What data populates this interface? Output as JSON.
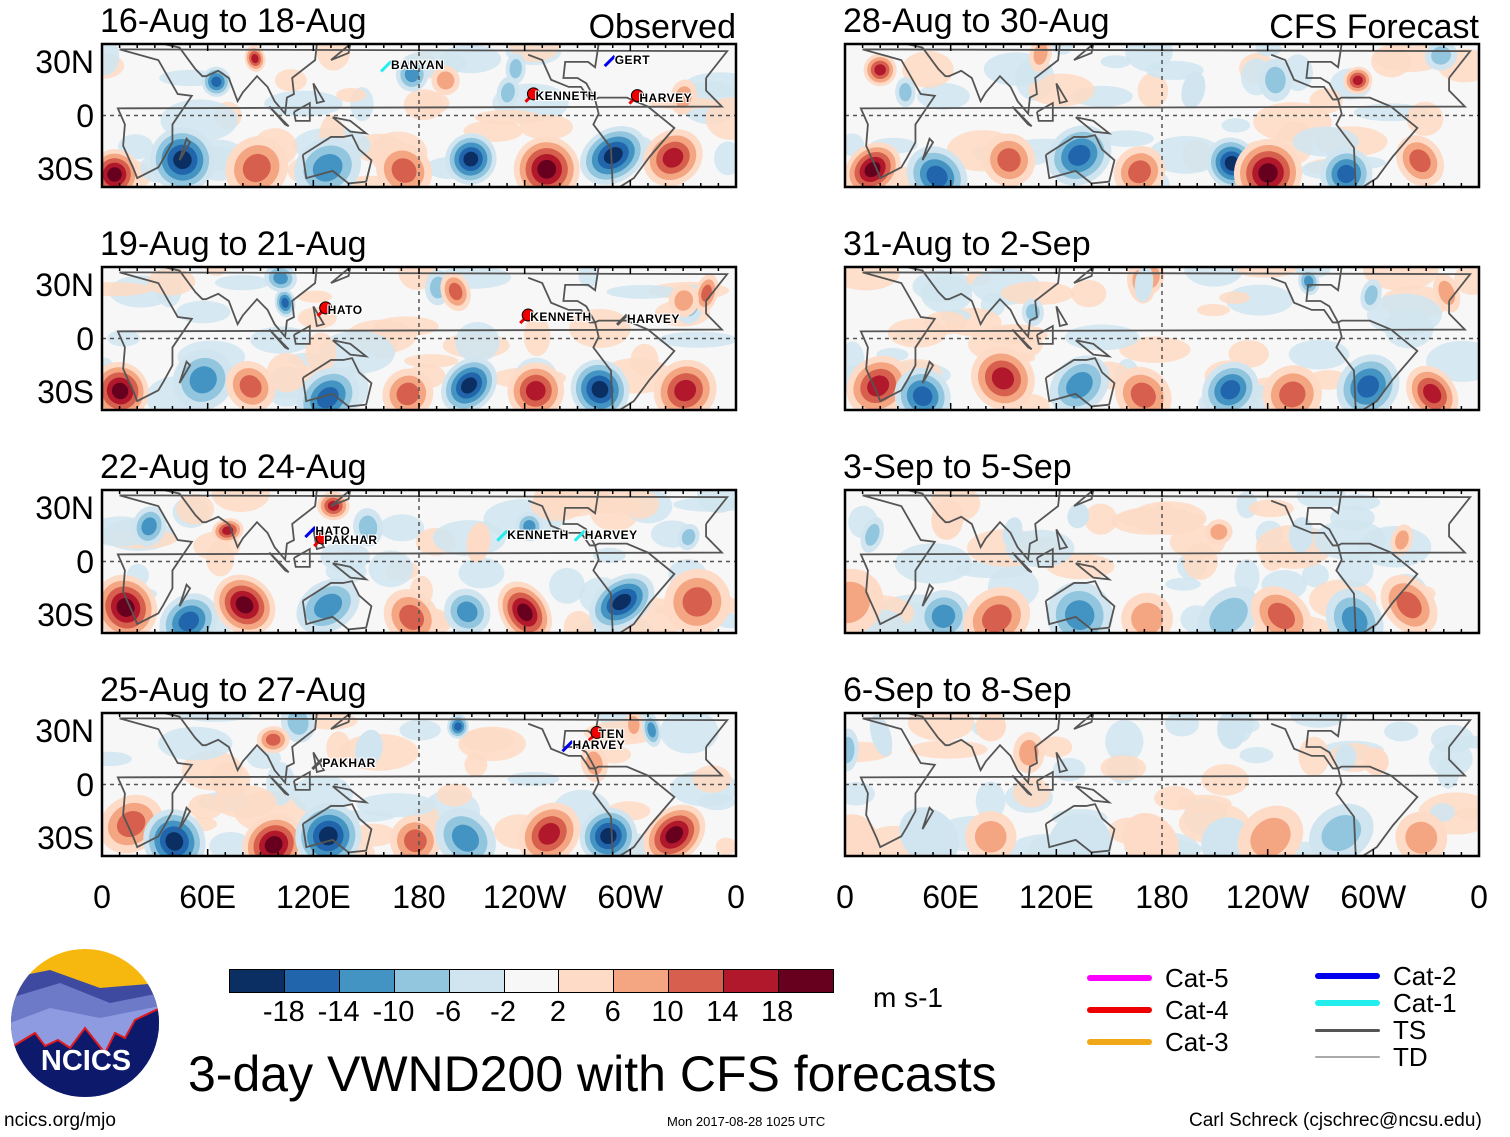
{
  "chart_data": {
    "type": "heatmap",
    "title": "3-day VWND200 with CFS forecasts",
    "units": "m s-1",
    "colorbar": {
      "levels": [
        -18,
        -14,
        -10,
        -6,
        -2,
        2,
        6,
        10,
        14,
        18
      ],
      "level_labels": [
        "-18",
        "-14",
        "-10",
        "-6",
        "-2",
        "2",
        "6",
        "10",
        "14",
        "18"
      ],
      "colors": [
        "#0b2f62",
        "#2166ac",
        "#4393c3",
        "#92c5de",
        "#d1e5f0",
        "#f7f7f7",
        "#fddbc7",
        "#f4a582",
        "#d6604d",
        "#b2182b",
        "#67001f"
      ]
    },
    "x_ticks": [
      "0",
      "60E",
      "120E",
      "180",
      "120W",
      "60W",
      "0"
    ],
    "x_tick_lons": [
      0,
      60,
      120,
      180,
      240,
      300,
      360
    ],
    "y_ticks": [
      "30N",
      "0",
      "30S"
    ],
    "y_tick_lats": [
      30,
      0,
      -30
    ],
    "columns": [
      {
        "label": "Observed",
        "panels": [
          {
            "title": "16-Aug to 18-Aug",
            "storms": [
              {
                "name": "BANYAN",
                "lon": 163,
                "lat": 28,
                "cat": "Cat-1"
              },
              {
                "name": "GERT",
                "lon": 290,
                "lat": 31,
                "cat": "Cat-2"
              },
              {
                "name": "KENNETH",
                "lon": 245,
                "lat": 11,
                "cat": "Cat-4"
              },
              {
                "name": "HARVEY",
                "lon": 304,
                "lat": 10,
                "cat": "Cat-4"
              }
            ]
          },
          {
            "title": "19-Aug to 21-Aug",
            "storms": [
              {
                "name": "HATO",
                "lon": 127,
                "lat": 16,
                "cat": "Cat-4"
              },
              {
                "name": "KENNETH",
                "lon": 242,
                "lat": 12,
                "cat": "Cat-4"
              },
              {
                "name": "HARVEY",
                "lon": 297,
                "lat": 11,
                "cat": "TS"
              }
            ]
          },
          {
            "title": "22-Aug to 24-Aug",
            "storms": [
              {
                "name": "HATO",
                "lon": 120,
                "lat": 17,
                "cat": "Cat-2"
              },
              {
                "name": "PAKHAR",
                "lon": 125,
                "lat": 12,
                "cat": "Cat-4"
              },
              {
                "name": "KENNETH",
                "lon": 229,
                "lat": 15,
                "cat": "Cat-1"
              },
              {
                "name": "HARVEY",
                "lon": 273,
                "lat": 15,
                "cat": "Cat-1"
              }
            ]
          },
          {
            "title": "25-Aug to 27-Aug",
            "storms": [
              {
                "name": "PAKHAR",
                "lon": 124,
                "lat": 12,
                "cat": "TS"
              },
              {
                "name": "TEN",
                "lon": 281,
                "lat": 28,
                "cat": "Cat-4"
              },
              {
                "name": "HARVEY",
                "lon": 266,
                "lat": 22,
                "cat": "Cat-2"
              }
            ]
          }
        ]
      },
      {
        "label": "CFS Forecast",
        "panels": [
          {
            "title": "28-Aug to 30-Aug",
            "storms": []
          },
          {
            "title": "31-Aug to 2-Sep",
            "storms": []
          },
          {
            "title": "3-Sep to 5-Sep",
            "storms": []
          },
          {
            "title": "6-Sep to 8-Sep",
            "storms": []
          }
        ]
      }
    ]
  },
  "legend": {
    "items": [
      {
        "label": "Cat-5",
        "color": "#ff00ff"
      },
      {
        "label": "Cat-4",
        "color": "#ee0000"
      },
      {
        "label": "Cat-3",
        "color": "#f0a818"
      },
      {
        "label": "Cat-2",
        "color": "#0000ee"
      },
      {
        "label": "Cat-1",
        "color": "#22eeee"
      },
      {
        "label": "TS",
        "color": "#555555"
      },
      {
        "label": "TD",
        "color": "#aaaaaa"
      }
    ]
  },
  "logo": {
    "text": "NCICS"
  },
  "footer": {
    "left": "ncics.org/mjo",
    "center": "Mon 2017-08-28 1025 UTC",
    "right": "Carl Schreck (cjschrec@ncsu.edu)"
  }
}
